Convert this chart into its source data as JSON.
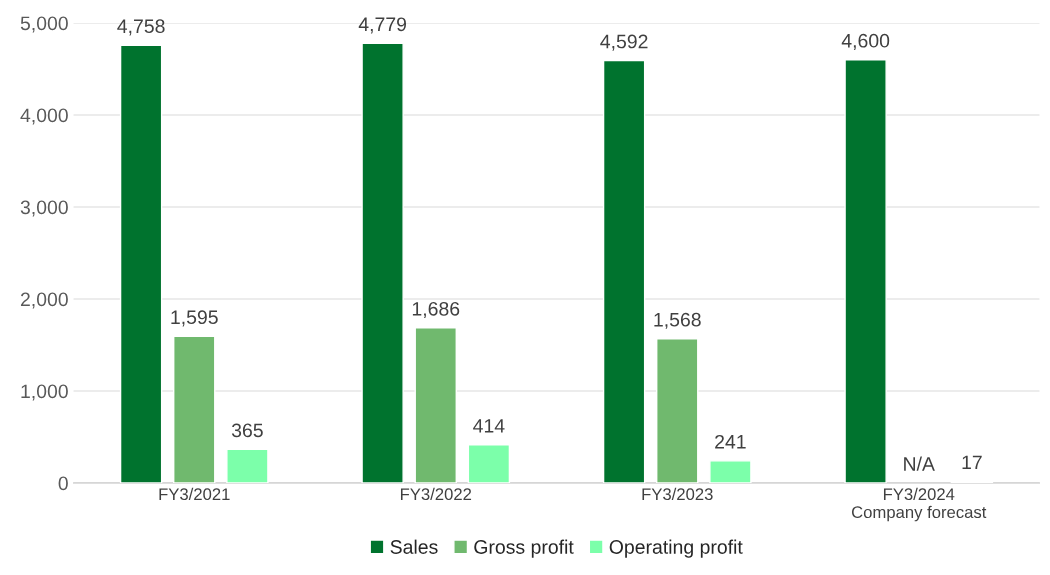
{
  "chart_data": {
    "type": "bar",
    "categories": [
      "FY3/2021",
      "FY3/2022",
      "FY3/2023",
      "FY3/2024\nCompany forecast"
    ],
    "series": [
      {
        "name": "Sales",
        "color": "#00732e",
        "values": [
          4758,
          4779,
          4592,
          4600
        ],
        "value_labels": [
          "4,758",
          "4,779",
          "4,592",
          "4,600"
        ]
      },
      {
        "name": "Gross profit",
        "color": "#70b96e",
        "values": [
          1595,
          1686,
          1568,
          null
        ],
        "value_labels": [
          "1,595",
          "1,686",
          "1,568",
          "N/A"
        ]
      },
      {
        "name": "Operating profit",
        "color": "#7cffaa",
        "values": [
          365,
          414,
          241,
          17
        ],
        "value_labels": [
          "365",
          "414",
          "241",
          "17"
        ]
      }
    ],
    "ylim": [
      0,
      5000
    ],
    "yticks": [
      0,
      {
        "value": 1000,
        "label": "1,000"
      },
      {
        "value": 2000,
        "label": "2,000"
      },
      {
        "value": 3000,
        "label": "3,000"
      },
      {
        "value": 4000,
        "label": "4,000"
      },
      {
        "value": 5000,
        "label": "5,000"
      }
    ],
    "grid": "y",
    "legend": "bottom"
  }
}
